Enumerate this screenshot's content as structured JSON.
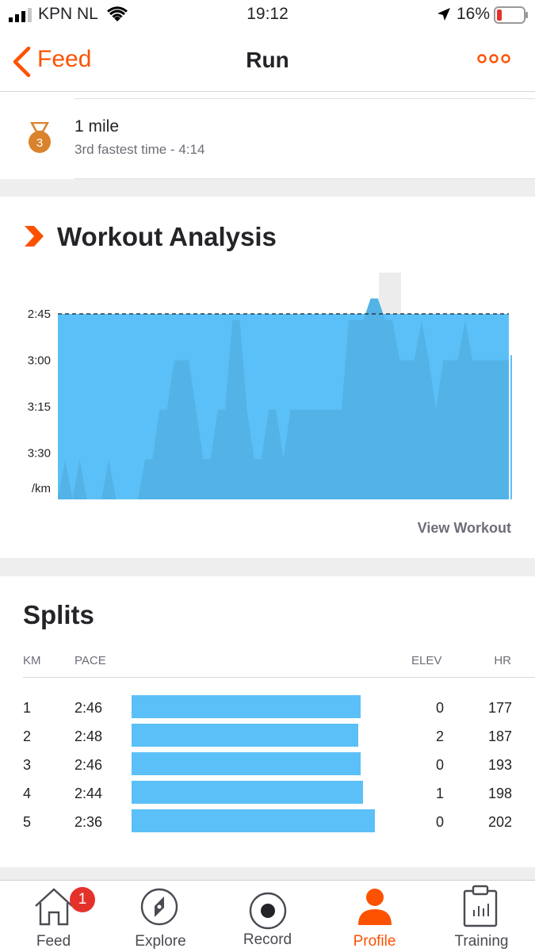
{
  "status_bar": {
    "carrier": "KPN NL",
    "time": "19:12",
    "battery": "16%"
  },
  "nav": {
    "back_label": "Feed",
    "title": "Run"
  },
  "achievement": {
    "medal_rank": "3",
    "title": "1 mile",
    "subtitle": "3rd fastest time - 4:14"
  },
  "workout_analysis": {
    "title": "Workout Analysis",
    "view_label": "View Workout",
    "y_tick_labels": [
      "2:45",
      "3:00",
      "3:15",
      "3:30",
      "/km"
    ]
  },
  "chart_data": {
    "type": "area",
    "title": "Workout Analysis",
    "ylabel": "/km",
    "y_ticks": [
      "2:45",
      "3:00",
      "3:15",
      "3:30"
    ],
    "y_unit": "seconds per km",
    "ylim": [
      165,
      225
    ],
    "average_pace": "2:45",
    "series": [
      {
        "name": "",
        "values": [
          225,
          212,
          225,
          212,
          225,
          225,
          225,
          212,
          225,
          225,
          225,
          225,
          212,
          212,
          196,
          196,
          180,
          180,
          180,
          196,
          212,
          212,
          196,
          196,
          167,
          167,
          196,
          212,
          212,
          196,
          196,
          212,
          196,
          196,
          196,
          196,
          196,
          196,
          196,
          196,
          167,
          167,
          167,
          160,
          160,
          167,
          167,
          180,
          180,
          180,
          167,
          180,
          196,
          180,
          180,
          180,
          167,
          180,
          180,
          180,
          180,
          180,
          180
        ]
      }
    ]
  },
  "splits": {
    "title": "Splits",
    "headers": {
      "km": "KM",
      "pace": "PACE",
      "elev": "ELEV",
      "hr": "HR"
    },
    "rows": [
      {
        "km": "1",
        "pace": "2:46",
        "elev": "0",
        "hr": "177",
        "speed_fraction": 0.94
      },
      {
        "km": "2",
        "pace": "2:48",
        "elev": "2",
        "hr": "187",
        "speed_fraction": 0.93
      },
      {
        "km": "3",
        "pace": "2:46",
        "elev": "0",
        "hr": "193",
        "speed_fraction": 0.94
      },
      {
        "km": "4",
        "pace": "2:44",
        "elev": "1",
        "hr": "198",
        "speed_fraction": 0.95
      },
      {
        "km": "5",
        "pace": "2:36",
        "elev": "0",
        "hr": "202",
        "speed_fraction": 1.0
      }
    ]
  },
  "tab_bar": {
    "feed": {
      "label": "Feed",
      "badge": "1"
    },
    "explore": {
      "label": "Explore"
    },
    "record": {
      "label": "Record"
    },
    "profile": {
      "label": "Profile"
    },
    "training": {
      "label": "Training"
    }
  },
  "colors": {
    "accent": "#fc5200",
    "bar": "#5bc0f8",
    "medal": "#d9832c"
  }
}
